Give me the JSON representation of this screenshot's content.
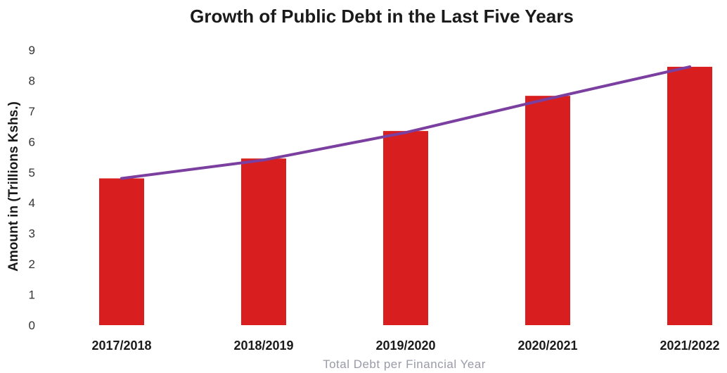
{
  "chart_data": {
    "type": "bar",
    "title": "Growth of Public Debt in the Last Five Years",
    "xlabel": "Total Debt per Financial Year",
    "ylabel": "Amount in (Trillions Kshs.)",
    "categories": [
      "2017/2018",
      "2018/2019",
      "2019/2020",
      "2020/2021",
      "2021/2022"
    ],
    "series": [
      {
        "type": "bar",
        "values": [
          4.8,
          5.45,
          6.35,
          7.5,
          8.45
        ],
        "color": "#d81e1e"
      },
      {
        "type": "line",
        "values": [
          4.8,
          5.4,
          6.3,
          7.4,
          8.45
        ],
        "color": "#7b3fa0"
      }
    ],
    "ylim": [
      0,
      9
    ],
    "yticks": [
      0,
      1,
      2,
      3,
      4,
      5,
      6,
      7,
      8,
      9
    ],
    "grid": false,
    "legend": "none"
  }
}
